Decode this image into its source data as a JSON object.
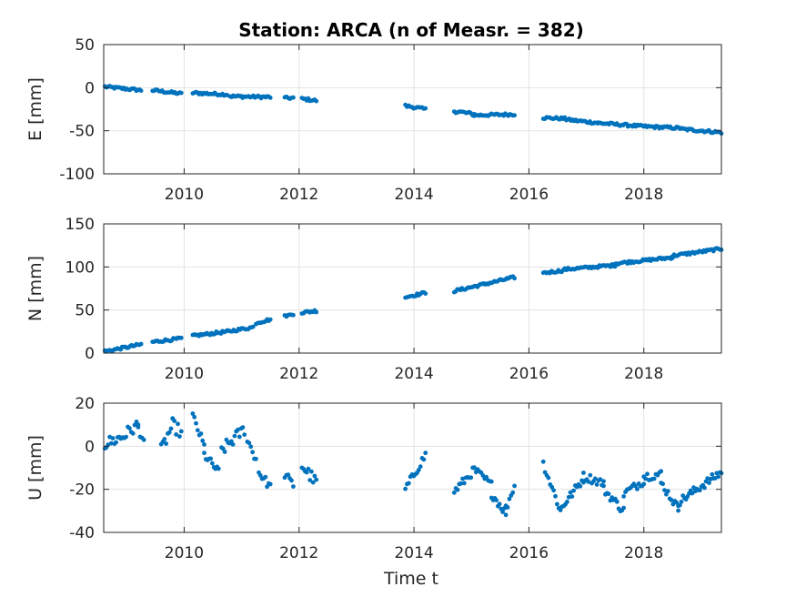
{
  "figure": {
    "title": "Station: ARCA (n of Measr. = 382)",
    "marker_color": "#0072BD"
  },
  "chart_data": [
    {
      "type": "scatter",
      "ylabel": "E [mm]",
      "xlabel": "",
      "xlim": [
        2008.6,
        2019.35
      ],
      "ylim": [
        -100,
        50
      ],
      "yticks": [
        -100,
        -50,
        0,
        50
      ],
      "xticks": [
        2010,
        2012,
        2014,
        2016,
        2018
      ],
      "grid": true,
      "series": [
        {
          "segments": [
            {
              "t0": 2008.62,
              "t1": 2009.25,
              "y0": 1,
              "y1": -3,
              "jit": 1.5
            },
            {
              "t0": 2009.45,
              "t1": 2009.95,
              "y0": -3,
              "y1": -7,
              "jit": 1.5
            },
            {
              "t0": 2010.15,
              "t1": 2010.75,
              "y0": -6,
              "y1": -8,
              "jit": 1.5
            },
            {
              "t0": 2010.8,
              "t1": 2011.5,
              "y0": -10,
              "y1": -11,
              "jit": 1.5
            },
            {
              "t0": 2011.75,
              "t1": 2011.9,
              "y0": -12,
              "y1": -12,
              "jit": 1.5
            },
            {
              "t0": 2012.05,
              "t1": 2012.3,
              "y0": -13,
              "y1": -15,
              "jit": 1.5
            },
            {
              "t0": 2013.85,
              "t1": 2014.2,
              "y0": -21,
              "y1": -25,
              "jit": 1.5
            },
            {
              "t0": 2014.7,
              "t1": 2015.05,
              "y0": -27,
              "y1": -31,
              "jit": 2
            },
            {
              "t0": 2015.05,
              "t1": 2015.75,
              "y0": -32,
              "y1": -31,
              "jit": 1.5
            },
            {
              "t0": 2016.25,
              "t1": 2016.65,
              "y0": -35,
              "y1": -36,
              "jit": 1.5
            },
            {
              "t0": 2016.65,
              "t1": 2017.2,
              "y0": -37,
              "y1": -41,
              "jit": 1.5
            },
            {
              "t0": 2017.2,
              "t1": 2018.0,
              "y0": -41,
              "y1": -45,
              "jit": 1.5
            },
            {
              "t0": 2018.0,
              "t1": 2018.65,
              "y0": -45,
              "y1": -47,
              "jit": 1.5
            },
            {
              "t0": 2018.65,
              "t1": 2019.35,
              "y0": -48,
              "y1": -52,
              "jit": 1.5
            }
          ]
        }
      ]
    },
    {
      "type": "scatter",
      "ylabel": "N [mm]",
      "xlabel": "",
      "xlim": [
        2008.6,
        2019.35
      ],
      "ylim": [
        0,
        150
      ],
      "yticks": [
        0,
        50,
        100,
        150
      ],
      "xticks": [
        2010,
        2012,
        2014,
        2016,
        2018
      ],
      "grid": true,
      "series": [
        {
          "segments": [
            {
              "t0": 2008.62,
              "t1": 2009.25,
              "y0": 2,
              "y1": 10,
              "jit": 1.5
            },
            {
              "t0": 2009.45,
              "t1": 2009.95,
              "y0": 13,
              "y1": 17,
              "jit": 1.5
            },
            {
              "t0": 2010.15,
              "t1": 2010.75,
              "y0": 20,
              "y1": 25,
              "jit": 1.5
            },
            {
              "t0": 2010.75,
              "t1": 2011.2,
              "y0": 25,
              "y1": 30,
              "jit": 1.5
            },
            {
              "t0": 2011.25,
              "t1": 2011.5,
              "y0": 35,
              "y1": 39,
              "jit": 1.5
            },
            {
              "t0": 2011.75,
              "t1": 2011.9,
              "y0": 43,
              "y1": 45,
              "jit": 1
            },
            {
              "t0": 2012.05,
              "t1": 2012.3,
              "y0": 47,
              "y1": 49,
              "jit": 1.5
            },
            {
              "t0": 2013.85,
              "t1": 2014.2,
              "y0": 65,
              "y1": 70,
              "jit": 1.5
            },
            {
              "t0": 2014.7,
              "t1": 2015.75,
              "y0": 72,
              "y1": 88,
              "jit": 1.5
            },
            {
              "t0": 2016.25,
              "t1": 2016.6,
              "y0": 93,
              "y1": 96,
              "jit": 1.5
            },
            {
              "t0": 2016.6,
              "t1": 2017.5,
              "y0": 97,
              "y1": 102,
              "jit": 1.5
            },
            {
              "t0": 2017.5,
              "t1": 2018.5,
              "y0": 104,
              "y1": 111,
              "jit": 1.5
            },
            {
              "t0": 2018.5,
              "t1": 2019.35,
              "y0": 113,
              "y1": 121,
              "jit": 1.5
            }
          ]
        }
      ]
    },
    {
      "type": "scatter",
      "ylabel": "U [mm]",
      "xlabel": "Time t",
      "xlim": [
        2008.6,
        2019.35
      ],
      "ylim": [
        -40,
        20
      ],
      "yticks": [
        -40,
        -20,
        0,
        20
      ],
      "xticks": [
        2010,
        2012,
        2014,
        2016,
        2018
      ],
      "grid": true,
      "series": [
        {
          "segments": [
            {
              "t0": 2008.62,
              "t1": 2008.9,
              "y0": 1,
              "y1": 4,
              "jit": 3
            },
            {
              "t0": 2008.9,
              "t1": 2009.2,
              "y0": 4,
              "y1": 10,
              "jit": 3
            },
            {
              "t0": 2009.2,
              "t1": 2009.3,
              "y0": 8,
              "y1": 3,
              "jit": 2
            },
            {
              "t0": 2009.6,
              "t1": 2009.8,
              "y0": -2,
              "y1": 10,
              "jit": 3
            },
            {
              "t0": 2009.8,
              "t1": 2009.95,
              "y0": 10,
              "y1": 6,
              "jit": 3
            },
            {
              "t0": 2010.15,
              "t1": 2010.35,
              "y0": 14,
              "y1": 0,
              "jit": 2
            },
            {
              "t0": 2010.35,
              "t1": 2010.6,
              "y0": -4,
              "y1": -12,
              "jit": 2
            },
            {
              "t0": 2010.65,
              "t1": 2011.05,
              "y0": -2,
              "y1": 8,
              "jit": 3
            },
            {
              "t0": 2011.1,
              "t1": 2011.25,
              "y0": 3,
              "y1": -6,
              "jit": 2
            },
            {
              "t0": 2011.3,
              "t1": 2011.5,
              "y0": -12,
              "y1": -19,
              "jit": 2
            },
            {
              "t0": 2011.75,
              "t1": 2011.9,
              "y0": -13,
              "y1": -18,
              "jit": 2
            },
            {
              "t0": 2012.05,
              "t1": 2012.3,
              "y0": -9,
              "y1": -17,
              "jit": 3
            },
            {
              "t0": 2013.85,
              "t1": 2014.2,
              "y0": -20,
              "y1": -4,
              "jit": 2
            },
            {
              "t0": 2014.7,
              "t1": 2015.05,
              "y0": -21,
              "y1": -11,
              "jit": 2
            },
            {
              "t0": 2015.05,
              "t1": 2015.35,
              "y0": -11,
              "y1": -18,
              "jit": 2
            },
            {
              "t0": 2015.35,
              "t1": 2015.6,
              "y0": -22,
              "y1": -31,
              "jit": 2
            },
            {
              "t0": 2015.6,
              "t1": 2015.75,
              "y0": -29,
              "y1": -18,
              "jit": 2
            },
            {
              "t0": 2016.25,
              "t1": 2016.55,
              "y0": -8,
              "y1": -30,
              "jit": 2
            },
            {
              "t0": 2016.55,
              "t1": 2016.95,
              "y0": -29,
              "y1": -15,
              "jit": 2
            },
            {
              "t0": 2016.95,
              "t1": 2017.3,
              "y0": -14,
              "y1": -17,
              "jit": 2
            },
            {
              "t0": 2017.3,
              "t1": 2017.65,
              "y0": -20,
              "y1": -30,
              "jit": 2
            },
            {
              "t0": 2017.65,
              "t1": 2018.0,
              "y0": -22,
              "y1": -16,
              "jit": 2
            },
            {
              "t0": 2018.0,
              "t1": 2018.3,
              "y0": -14,
              "y1": -13,
              "jit": 2
            },
            {
              "t0": 2018.3,
              "t1": 2018.6,
              "y0": -17,
              "y1": -29,
              "jit": 2
            },
            {
              "t0": 2018.6,
              "t1": 2019.35,
              "y0": -26,
              "y1": -12,
              "jit": 2
            }
          ]
        }
      ]
    }
  ]
}
